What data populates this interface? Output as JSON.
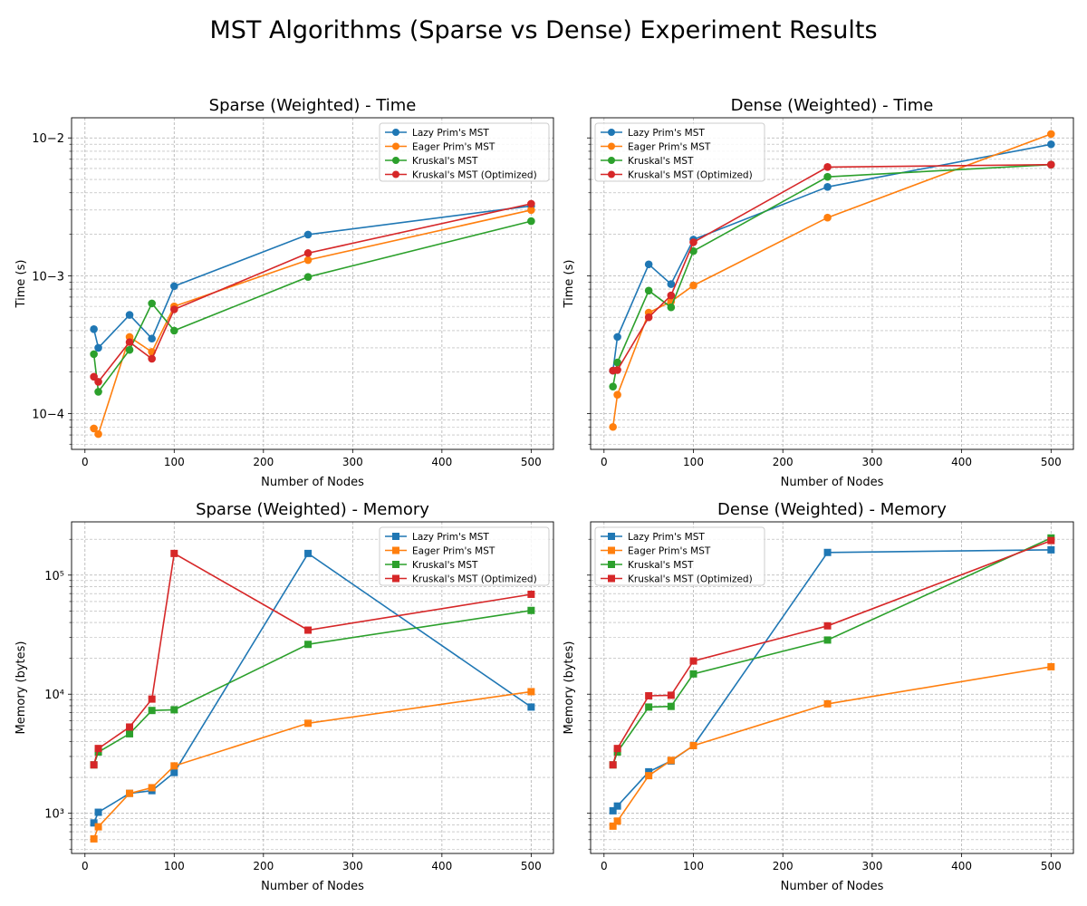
{
  "figure": {
    "title": "MST Algorithms (Sparse vs Dense) Experiment Results",
    "colors": {
      "lazy": "#1f77b4",
      "eager": "#ff7f0e",
      "kruskal": "#2ca02c",
      "kruskal_opt": "#d62728",
      "grid": "#b0b0b0"
    }
  },
  "chart_data": [
    {
      "type": "line",
      "title": "Sparse (Weighted) - Time",
      "xlabel": "Number of Nodes",
      "ylabel": "Time (s)",
      "yscale": "log",
      "xlim": [
        -15,
        525
      ],
      "ylim": [
        5.5e-05,
        0.014
      ],
      "xticks": [
        0,
        100,
        200,
        300,
        400,
        500
      ],
      "yticks": [
        {
          "value": 0.0001,
          "label": "10−4"
        },
        {
          "value": 0.001,
          "label": "10−3"
        },
        {
          "value": 0.01,
          "label": "10−2"
        }
      ],
      "grid": true,
      "marker": "circle",
      "legend": "top-right",
      "x": [
        10,
        15,
        50,
        75,
        100,
        250,
        500
      ],
      "series": [
        {
          "name": "Lazy Prim's MST",
          "color": "#1f77b4",
          "values": [
            0.00041,
            0.0003,
            0.00052,
            0.00035,
            0.00084,
            0.00199,
            0.00321
          ]
        },
        {
          "name": "Eager Prim's MST",
          "color": "#ff7f0e",
          "values": [
            7.8e-05,
            7.1e-05,
            0.00036,
            0.00028,
            0.0006,
            0.0013,
            0.003
          ]
        },
        {
          "name": "Kruskal's MST",
          "color": "#2ca02c",
          "values": [
            0.00027,
            0.000144,
            0.00029,
            0.00063,
            0.0004,
            0.00098,
            0.00249
          ]
        },
        {
          "name": "Kruskal's MST (Optimized)",
          "color": "#d62728",
          "values": [
            0.000185,
            0.00017,
            0.00033,
            0.00025,
            0.00057,
            0.00146,
            0.00333
          ]
        }
      ]
    },
    {
      "type": "line",
      "title": "Dense (Weighted) - Time",
      "xlabel": "Number of Nodes",
      "ylabel": "Time (s)",
      "yscale": "log",
      "xlim": [
        -15,
        525
      ],
      "ylim": [
        5.5e-05,
        0.014
      ],
      "xticks": [
        0,
        100,
        200,
        300,
        400,
        500
      ],
      "yticks": [],
      "grid": true,
      "marker": "circle",
      "legend": "top-left",
      "x": [
        10,
        15,
        50,
        75,
        100,
        250,
        500
      ],
      "series": [
        {
          "name": "Lazy Prim's MST",
          "color": "#1f77b4",
          "values": [
            0.000205,
            0.00036,
            0.00121,
            0.00087,
            0.00183,
            0.00441,
            0.00899
          ]
        },
        {
          "name": "Eager Prim's MST",
          "color": "#ff7f0e",
          "values": [
            8e-05,
            0.000137,
            0.00054,
            0.00065,
            0.00085,
            0.00264,
            0.01068
          ]
        },
        {
          "name": "Kruskal's MST",
          "color": "#2ca02c",
          "values": [
            0.000157,
            0.000235,
            0.00078,
            0.00059,
            0.00151,
            0.00522,
            0.0064
          ]
        },
        {
          "name": "Kruskal's MST (Optimized)",
          "color": "#d62728",
          "values": [
            0.000205,
            0.000207,
            0.0005,
            0.00072,
            0.00175,
            0.00615,
            0.0064
          ]
        }
      ]
    },
    {
      "type": "line",
      "title": "Sparse (Weighted) - Memory",
      "xlabel": "Number of Nodes",
      "ylabel": "Memory (bytes)",
      "yscale": "log",
      "xlim": [
        -15,
        525
      ],
      "ylim": [
        460,
        280000
      ],
      "xticks": [
        0,
        100,
        200,
        300,
        400,
        500
      ],
      "yticks": [
        {
          "value": 1000,
          "label": "10³"
        },
        {
          "value": 10000,
          "label": "10⁴"
        },
        {
          "value": 100000,
          "label": "10⁵"
        }
      ],
      "grid": true,
      "marker": "square",
      "legend": "top-right",
      "x": [
        10,
        15,
        50,
        75,
        100,
        250,
        500
      ],
      "series": [
        {
          "name": "Lazy Prim's MST",
          "color": "#1f77b4",
          "values": [
            830,
            1020,
            1470,
            1550,
            2200,
            152000,
            7800
          ]
        },
        {
          "name": "Eager Prim's MST",
          "color": "#ff7f0e",
          "values": [
            610,
            770,
            1470,
            1640,
            2500,
            5700,
            10500
          ]
        },
        {
          "name": "Kruskal's MST",
          "color": "#2ca02c",
          "values": [
            2550,
            3270,
            4650,
            7300,
            7400,
            26200,
            50500
          ]
        },
        {
          "name": "Kruskal's MST (Optimized)",
          "color": "#d62728",
          "values": [
            2550,
            3500,
            5300,
            9100,
            152000,
            34500,
            69000
          ]
        }
      ]
    },
    {
      "type": "line",
      "title": "Dense (Weighted) - Memory",
      "xlabel": "Number of Nodes",
      "ylabel": "Memory (bytes)",
      "yscale": "log",
      "xlim": [
        -15,
        525
      ],
      "ylim": [
        460,
        280000
      ],
      "xticks": [
        0,
        100,
        200,
        300,
        400,
        500
      ],
      "yticks": [],
      "grid": true,
      "marker": "square",
      "legend": "top-left",
      "x": [
        10,
        15,
        50,
        75,
        100,
        250,
        500
      ],
      "series": [
        {
          "name": "Lazy Prim's MST",
          "color": "#1f77b4",
          "values": [
            1050,
            1150,
            2230,
            2750,
            3700,
            155000,
            163000
          ]
        },
        {
          "name": "Eager Prim's MST",
          "color": "#ff7f0e",
          "values": [
            780,
            860,
            2070,
            2780,
            3700,
            8300,
            17000
          ]
        },
        {
          "name": "Kruskal's MST",
          "color": "#2ca02c",
          "values": [
            2550,
            3270,
            7800,
            7900,
            14800,
            28500,
            205000
          ]
        },
        {
          "name": "Kruskal's MST (Optimized)",
          "color": "#d62728",
          "values": [
            2550,
            3500,
            9700,
            9800,
            19000,
            37500,
            195000
          ]
        }
      ]
    }
  ]
}
